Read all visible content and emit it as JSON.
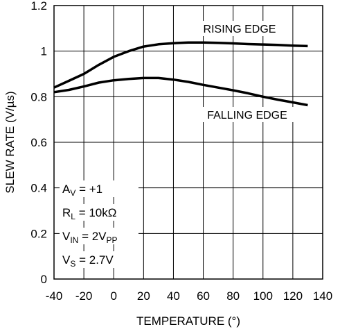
{
  "chart_data": {
    "type": "line",
    "xlabel": "TEMPERATURE (°)",
    "ylabel": "SLEW RATE (V/µs)",
    "xlim": [
      -40,
      130
    ],
    "ylim": [
      0,
      1.2
    ],
    "x_ticks": [
      "-40",
      "-20",
      "0",
      "20",
      "40",
      "60",
      "80",
      "100",
      "120",
      "140"
    ],
    "y_ticks": [
      "0",
      "0.2",
      "0.4",
      "0.6",
      "0.8",
      "1",
      "1.2"
    ],
    "grid": true,
    "series": [
      {
        "name": "RISING EDGE",
        "x": [
          -40,
          -30,
          -20,
          -10,
          0,
          10,
          20,
          30,
          40,
          50,
          60,
          70,
          80,
          90,
          100,
          110,
          120,
          130
        ],
        "y": [
          0.84,
          0.87,
          0.9,
          0.94,
          0.975,
          1.0,
          1.02,
          1.03,
          1.035,
          1.038,
          1.038,
          1.036,
          1.034,
          1.031,
          1.029,
          1.027,
          1.024,
          1.022
        ]
      },
      {
        "name": "FALLING EDGE",
        "x": [
          -40,
          -30,
          -20,
          -10,
          0,
          10,
          20,
          30,
          40,
          50,
          60,
          70,
          80,
          90,
          100,
          110,
          120,
          130
        ],
        "y": [
          0.82,
          0.83,
          0.845,
          0.862,
          0.872,
          0.878,
          0.882,
          0.882,
          0.875,
          0.865,
          0.852,
          0.84,
          0.828,
          0.815,
          0.8,
          0.787,
          0.775,
          0.763
        ]
      }
    ],
    "annotations": {
      "rising_label": "RISING EDGE",
      "falling_label": "FALLING EDGE"
    },
    "conditions": [
      {
        "main": "A",
        "sub": "V",
        "rest": " = +1",
        "sub2": ""
      },
      {
        "main": "R",
        "sub": "L",
        "rest": " = 10kΩ",
        "sub2": ""
      },
      {
        "main": "V",
        "sub": "IN",
        "rest": " = 2V",
        "sub2": "PP"
      },
      {
        "main": "V",
        "sub": "S",
        "rest": " = 2.7V",
        "sub2": ""
      }
    ]
  }
}
